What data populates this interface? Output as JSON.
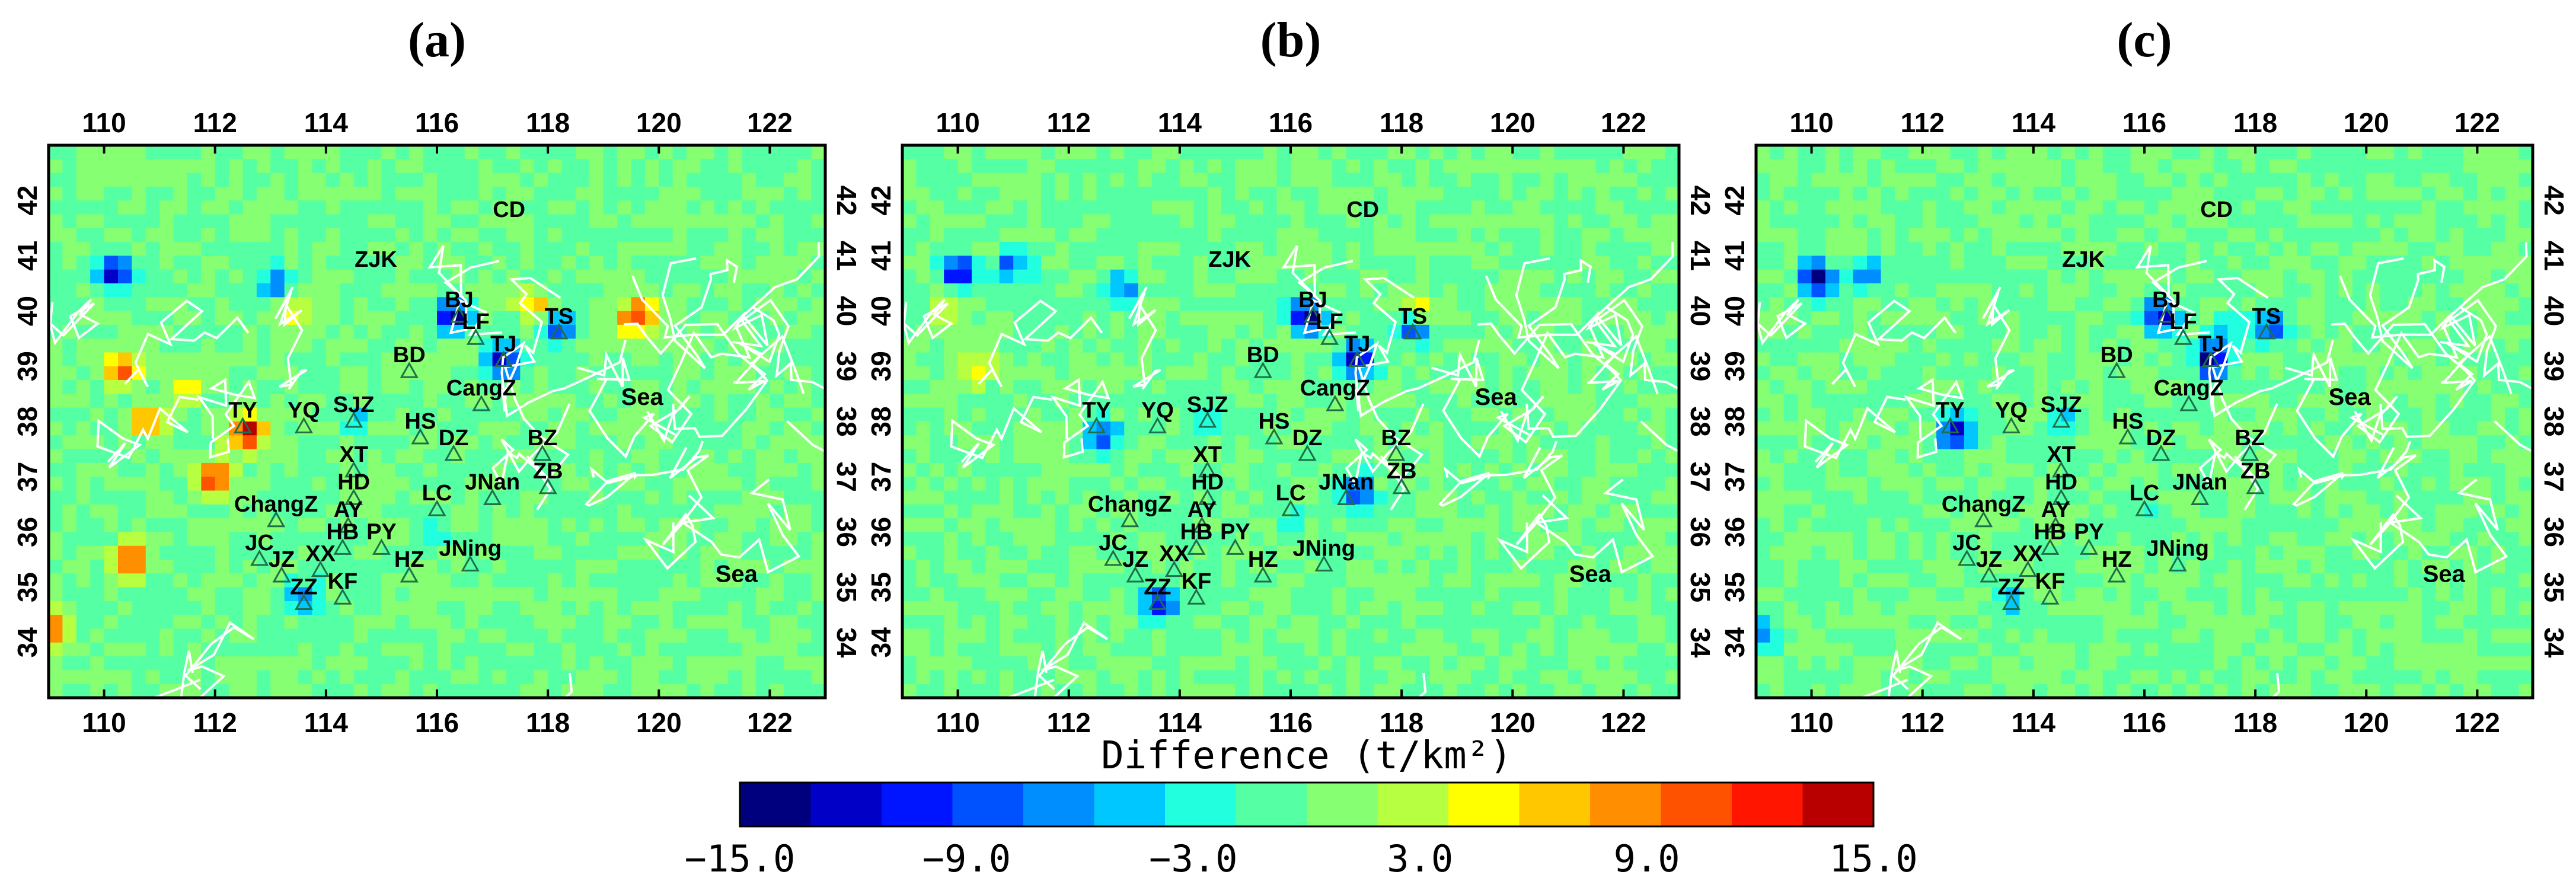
{
  "chart_data": {
    "type": "heatmap",
    "panels": [
      {
        "label": "(a)",
        "hotspots": [
          {
            "lon": 110.2,
            "lat": 40.7,
            "value": -14
          },
          {
            "lon": 113.1,
            "lat": 40.5,
            "value": -8
          },
          {
            "lon": 116.3,
            "lat": 39.9,
            "value": -15
          },
          {
            "lon": 117.2,
            "lat": 39.1,
            "value": -13
          },
          {
            "lon": 118.2,
            "lat": 39.7,
            "value": -10
          },
          {
            "lon": 112.6,
            "lat": 37.8,
            "value": 15
          },
          {
            "lon": 110.3,
            "lat": 38.9,
            "value": 11
          },
          {
            "lon": 119.6,
            "lat": 39.9,
            "value": 12
          },
          {
            "lon": 112.0,
            "lat": 37.0,
            "value": 13
          },
          {
            "lon": 110.5,
            "lat": 35.5,
            "value": 12
          },
          {
            "lon": 109.1,
            "lat": 34.3,
            "value": 10
          },
          {
            "lon": 113.6,
            "lat": 34.8,
            "value": -7
          },
          {
            "lon": 111.5,
            "lat": 38.6,
            "value": 7
          },
          {
            "lon": 110.8,
            "lat": 38.0,
            "value": 8
          },
          {
            "lon": 117.8,
            "lat": 40.1,
            "value": 6
          },
          {
            "lon": 114.5,
            "lat": 38.0,
            "value": -4
          },
          {
            "lon": 116.0,
            "lat": 36.0,
            "value": -3
          },
          {
            "lon": 113.5,
            "lat": 40.0,
            "value": 5
          }
        ]
      },
      {
        "label": "(b)",
        "hotspots": [
          {
            "lon": 110.0,
            "lat": 40.7,
            "value": -13
          },
          {
            "lon": 111.0,
            "lat": 40.8,
            "value": -8
          },
          {
            "lon": 113.0,
            "lat": 40.4,
            "value": -7
          },
          {
            "lon": 116.3,
            "lat": 39.9,
            "value": -15
          },
          {
            "lon": 117.2,
            "lat": 39.1,
            "value": -14
          },
          {
            "lon": 118.2,
            "lat": 39.7,
            "value": -9
          },
          {
            "lon": 112.6,
            "lat": 37.7,
            "value": -9
          },
          {
            "lon": 113.6,
            "lat": 34.7,
            "value": -12
          },
          {
            "lon": 117.2,
            "lat": 36.7,
            "value": -10
          },
          {
            "lon": 110.3,
            "lat": 38.9,
            "value": 5
          },
          {
            "lon": 109.8,
            "lat": 40.1,
            "value": 4
          },
          {
            "lon": 118.3,
            "lat": 40.0,
            "value": 6
          },
          {
            "lon": 114.5,
            "lat": 38.0,
            "value": -4
          },
          {
            "lon": 116.0,
            "lat": 36.2,
            "value": -3
          }
        ]
      },
      {
        "label": "(c)",
        "hotspots": [
          {
            "lon": 110.1,
            "lat": 40.6,
            "value": -15
          },
          {
            "lon": 111.0,
            "lat": 40.7,
            "value": -8
          },
          {
            "lon": 112.6,
            "lat": 37.8,
            "value": -13
          },
          {
            "lon": 116.3,
            "lat": 39.9,
            "value": -13
          },
          {
            "lon": 117.2,
            "lat": 39.1,
            "value": -14
          },
          {
            "lon": 118.3,
            "lat": 39.7,
            "value": -10
          },
          {
            "lon": 113.6,
            "lat": 34.8,
            "value": -5
          },
          {
            "lon": 109.1,
            "lat": 34.2,
            "value": -7
          },
          {
            "lon": 114.5,
            "lat": 38.0,
            "value": -4
          },
          {
            "lon": 116.0,
            "lat": 36.3,
            "value": -3
          },
          {
            "lon": 117.5,
            "lat": 39.7,
            "value": -4
          }
        ]
      }
    ],
    "cities": [
      {
        "name": "CD",
        "lon": 117.3,
        "lat": 41.7,
        "marker": false
      },
      {
        "name": "ZJK",
        "lon": 114.9,
        "lat": 40.8,
        "marker": false
      },
      {
        "name": "BJ",
        "lon": 116.4,
        "lat": 39.9,
        "marker": true
      },
      {
        "name": "LF",
        "lon": 116.7,
        "lat": 39.5,
        "marker": true
      },
      {
        "name": "TS",
        "lon": 118.2,
        "lat": 39.6,
        "marker": true
      },
      {
        "name": "BD",
        "lon": 115.5,
        "lat": 38.9,
        "marker": true
      },
      {
        "name": "TJ",
        "lon": 117.2,
        "lat": 39.1,
        "marker": true
      },
      {
        "name": "TY",
        "lon": 112.5,
        "lat": 37.9,
        "marker": true
      },
      {
        "name": "YQ",
        "lon": 113.6,
        "lat": 37.9,
        "marker": true
      },
      {
        "name": "SJZ",
        "lon": 114.5,
        "lat": 38.0,
        "marker": true
      },
      {
        "name": "HS",
        "lon": 115.7,
        "lat": 37.7,
        "marker": true
      },
      {
        "name": "CangZ",
        "lon": 116.8,
        "lat": 38.3,
        "marker": true
      },
      {
        "name": "XT",
        "lon": 114.5,
        "lat": 37.1,
        "marker": true
      },
      {
        "name": "DZ",
        "lon": 116.3,
        "lat": 37.4,
        "marker": true
      },
      {
        "name": "BZ",
        "lon": 117.9,
        "lat": 37.4,
        "marker": true
      },
      {
        "name": "HD",
        "lon": 114.5,
        "lat": 36.6,
        "marker": true
      },
      {
        "name": "ChangZ",
        "lon": 113.1,
        "lat": 36.2,
        "marker": true
      },
      {
        "name": "AY",
        "lon": 114.4,
        "lat": 36.1,
        "marker": true
      },
      {
        "name": "LC",
        "lon": 116.0,
        "lat": 36.4,
        "marker": true
      },
      {
        "name": "JNan",
        "lon": 117.0,
        "lat": 36.6,
        "marker": true
      },
      {
        "name": "ZB",
        "lon": 118.0,
        "lat": 36.8,
        "marker": true
      },
      {
        "name": "JC",
        "lon": 112.8,
        "lat": 35.5,
        "marker": true
      },
      {
        "name": "HB",
        "lon": 114.3,
        "lat": 35.7,
        "marker": true
      },
      {
        "name": "PY",
        "lon": 115.0,
        "lat": 35.7,
        "marker": true
      },
      {
        "name": "JZ",
        "lon": 113.2,
        "lat": 35.2,
        "marker": true
      },
      {
        "name": "XX",
        "lon": 113.9,
        "lat": 35.3,
        "marker": true
      },
      {
        "name": "HZ",
        "lon": 115.5,
        "lat": 35.2,
        "marker": true
      },
      {
        "name": "JNing",
        "lon": 116.6,
        "lat": 35.4,
        "marker": true
      },
      {
        "name": "ZZ",
        "lon": 113.6,
        "lat": 34.7,
        "marker": true
      },
      {
        "name": "KF",
        "lon": 114.3,
        "lat": 34.8,
        "marker": true
      }
    ],
    "sea_labels": [
      {
        "name": "Sea",
        "lon": 119.7,
        "lat": 38.3
      },
      {
        "name": "Sea",
        "lon": 121.4,
        "lat": 35.1
      }
    ],
    "x_ticks": [
      "110",
      "112",
      "114",
      "116",
      "118",
      "120",
      "122"
    ],
    "y_ticks": [
      "34",
      "35",
      "36",
      "37",
      "38",
      "39",
      "40",
      "41",
      "42"
    ],
    "xlim": [
      109,
      123
    ],
    "ylim": [
      33,
      43
    ],
    "colorbar": {
      "title": "Difference (t/km²)",
      "range": [
        -15.0,
        15.0
      ],
      "tick_labels": [
        "−15.0",
        "−9.0",
        "−3.0",
        "3.0",
        "9.0",
        "15.0"
      ],
      "colors": [
        "#00007f",
        "#0000c7",
        "#0015ff",
        "#0052ff",
        "#008eff",
        "#00c7ff",
        "#21ffde",
        "#55ffa3",
        "#86ff72",
        "#b7ff41",
        "#ffff00",
        "#ffc700",
        "#ff8e00",
        "#ff5200",
        "#ff1500",
        "#b80000"
      ]
    }
  }
}
